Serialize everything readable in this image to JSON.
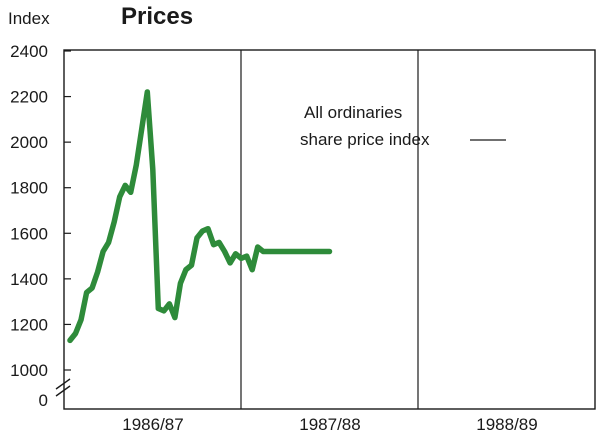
{
  "chart_data": {
    "type": "line",
    "title": "Prices",
    "ylabel": "Index",
    "xlabel": "",
    "ylim": [
      1000,
      2400
    ],
    "yticks": [
      "2400",
      "2200",
      "2000",
      "1800",
      "1600",
      "1400",
      "1200",
      "1000",
      "0"
    ],
    "y_axis_break": true,
    "categories": [
      "1986/87",
      "1987/88",
      "1988/89"
    ],
    "grid": "vertical dividers between years",
    "legend": "none",
    "annotation": {
      "lines": [
        "All ordinaries",
        "share price index"
      ]
    },
    "series": [
      {
        "color": "#2e8b3a",
        "x": [
          0,
          0.5,
          1,
          1.5,
          2,
          2.5,
          3,
          3.5,
          4,
          4.5,
          5,
          5.5,
          6,
          6.5,
          7,
          7.5,
          8,
          8.5,
          9,
          9.5,
          10,
          10.5,
          11,
          11.5,
          12,
          12.5,
          13,
          13.5,
          14,
          14.5,
          15,
          15.5,
          16,
          16.5,
          17,
          17.5,
          18,
          18.5,
          19,
          19.5,
          20,
          20.5,
          21,
          21.5,
          22,
          22.5,
          23,
          23.5
        ],
        "values": [
          1130,
          1160,
          1220,
          1340,
          1360,
          1430,
          1520,
          1560,
          1650,
          1760,
          1810,
          1780,
          1900,
          2060,
          2220,
          1880,
          1270,
          1260,
          1290,
          1230,
          1380,
          1440,
          1460,
          1580,
          1610,
          1620,
          1550,
          1560,
          1520,
          1470,
          1510,
          1490,
          1500,
          1440,
          1540,
          1520,
          1520,
          1520,
          1520,
          1520,
          1520,
          1520,
          1520,
          1520,
          1520,
          1520,
          1520,
          1520
        ]
      }
    ]
  }
}
